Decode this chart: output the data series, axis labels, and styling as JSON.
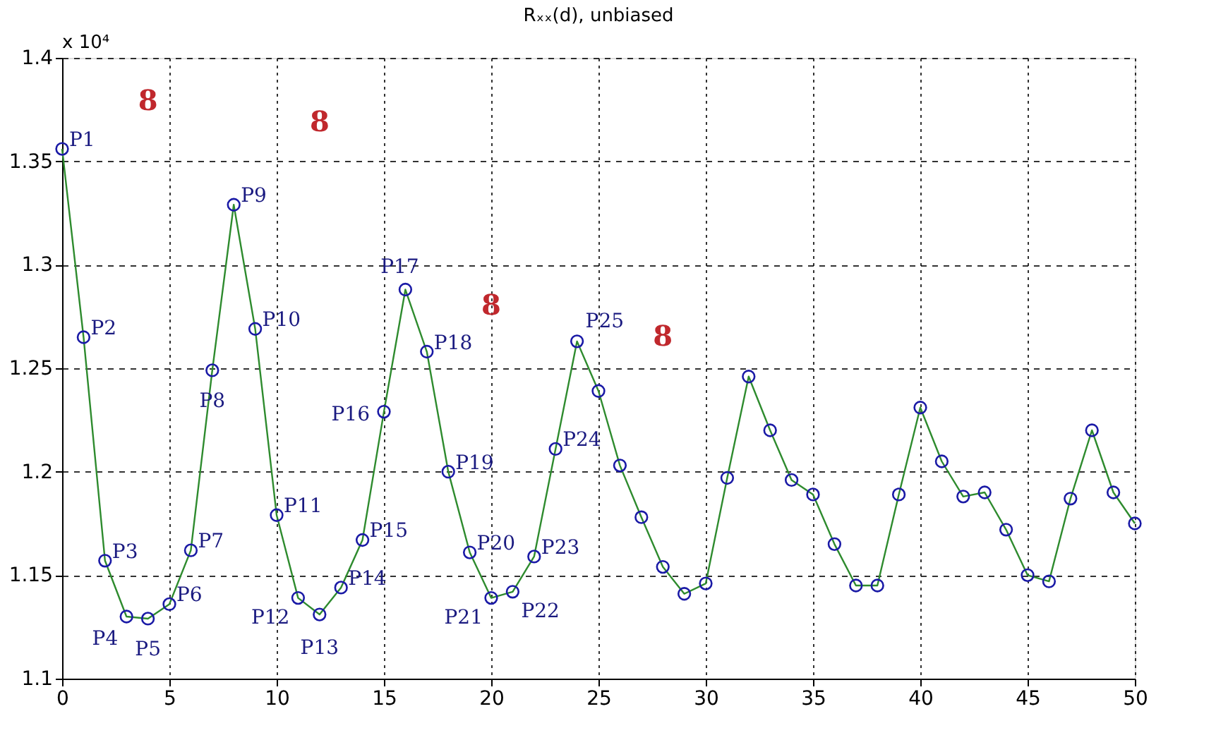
{
  "chart_data": {
    "type": "line",
    "title": "Rₓₓ(d), unbiased",
    "x": [
      0,
      1,
      2,
      3,
      4,
      5,
      6,
      7,
      8,
      9,
      10,
      11,
      12,
      13,
      14,
      15,
      16,
      17,
      18,
      19,
      20,
      21,
      22,
      23,
      24,
      25,
      26,
      27,
      28,
      29,
      30,
      31,
      32,
      33,
      34,
      35,
      36,
      37,
      38,
      39,
      40,
      41,
      42,
      43,
      44,
      45,
      46,
      47,
      48,
      49,
      50
    ],
    "series": [
      {
        "type": "line",
        "color": "#2e8b2e",
        "marker": "none",
        "line_style": "solid",
        "values": [
          1.356,
          1.265,
          1.157,
          1.13,
          1.129,
          1.136,
          1.162,
          1.249,
          1.329,
          1.269,
          1.179,
          1.139,
          1.131,
          1.144,
          1.167,
          1.229,
          1.288,
          1.258,
          1.2,
          1.161,
          1.139,
          1.142,
          1.159,
          1.211,
          1.263,
          1.239,
          1.203,
          1.178,
          1.154,
          1.141,
          1.146,
          1.197,
          1.246,
          1.22,
          1.196,
          1.189,
          1.165,
          1.145,
          1.145,
          1.189,
          1.231,
          1.205,
          1.188,
          1.19,
          1.172,
          1.15,
          1.147,
          1.187,
          1.22,
          1.19,
          1.175
        ]
      },
      {
        "type": "scatter",
        "color": "#1a1aa6",
        "marker": "circle",
        "values": [
          1.356,
          1.265,
          1.157,
          1.13,
          1.129,
          1.136,
          1.162,
          1.249,
          1.329,
          1.269,
          1.179,
          1.139,
          1.131,
          1.144,
          1.167,
          1.229,
          1.288,
          1.258,
          1.2,
          1.161,
          1.139,
          1.142,
          1.159,
          1.211,
          1.263,
          1.239,
          1.203,
          1.178,
          1.154,
          1.141,
          1.146,
          1.197,
          1.246,
          1.22,
          1.196,
          1.189,
          1.165,
          1.145,
          1.145,
          1.189,
          1.231,
          1.205,
          1.188,
          1.19,
          1.172,
          1.15,
          1.147,
          1.187,
          1.22,
          1.19,
          1.175
        ]
      }
    ],
    "xlim": [
      0,
      50
    ],
    "xticks": [
      0,
      5,
      10,
      15,
      20,
      25,
      30,
      35,
      40,
      45,
      50
    ],
    "ylim": [
      1.1,
      1.4
    ],
    "yticks": [
      1.1,
      1.15,
      1.2,
      1.25,
      1.3,
      1.35,
      1.4
    ],
    "grid": true,
    "annotations": [
      "x 10⁴",
      {
        "text": "P1",
        "x": 0,
        "y": 1.356
      },
      {
        "text": "P2",
        "x": 1,
        "y": 1.265
      },
      {
        "text": "P3",
        "x": 2,
        "y": 1.157
      },
      {
        "text": "P4",
        "x": 3,
        "y": 1.13
      },
      {
        "text": "P5",
        "x": 4,
        "y": 1.129
      },
      {
        "text": "P6",
        "x": 5,
        "y": 1.136
      },
      {
        "text": "P7",
        "x": 6,
        "y": 1.162
      },
      {
        "text": "P8",
        "x": 7,
        "y": 1.249
      },
      {
        "text": "P9",
        "x": 8,
        "y": 1.329
      },
      {
        "text": "P10",
        "x": 9,
        "y": 1.269
      },
      {
        "text": "P11",
        "x": 10,
        "y": 1.179
      },
      {
        "text": "P12",
        "x": 11,
        "y": 1.139
      },
      {
        "text": "P13",
        "x": 12,
        "y": 1.131
      },
      {
        "text": "P14",
        "x": 13,
        "y": 1.144
      },
      {
        "text": "P15",
        "x": 14,
        "y": 1.167
      },
      {
        "text": "P16",
        "x": 15,
        "y": 1.229
      },
      {
        "text": "P17",
        "x": 16,
        "y": 1.288
      },
      {
        "text": "P18",
        "x": 17,
        "y": 1.258
      },
      {
        "text": "P19",
        "x": 18,
        "y": 1.2
      },
      {
        "text": "P20",
        "x": 19,
        "y": 1.161
      },
      {
        "text": "P21",
        "x": 20,
        "y": 1.139
      },
      {
        "text": "P22",
        "x": 21,
        "y": 1.142
      },
      {
        "text": "P23",
        "x": 22,
        "y": 1.159
      },
      {
        "text": "P24",
        "x": 23,
        "y": 1.211
      },
      {
        "text": "P25",
        "x": 24,
        "y": 1.263
      },
      "8",
      "8",
      "8",
      "8"
    ]
  }
}
